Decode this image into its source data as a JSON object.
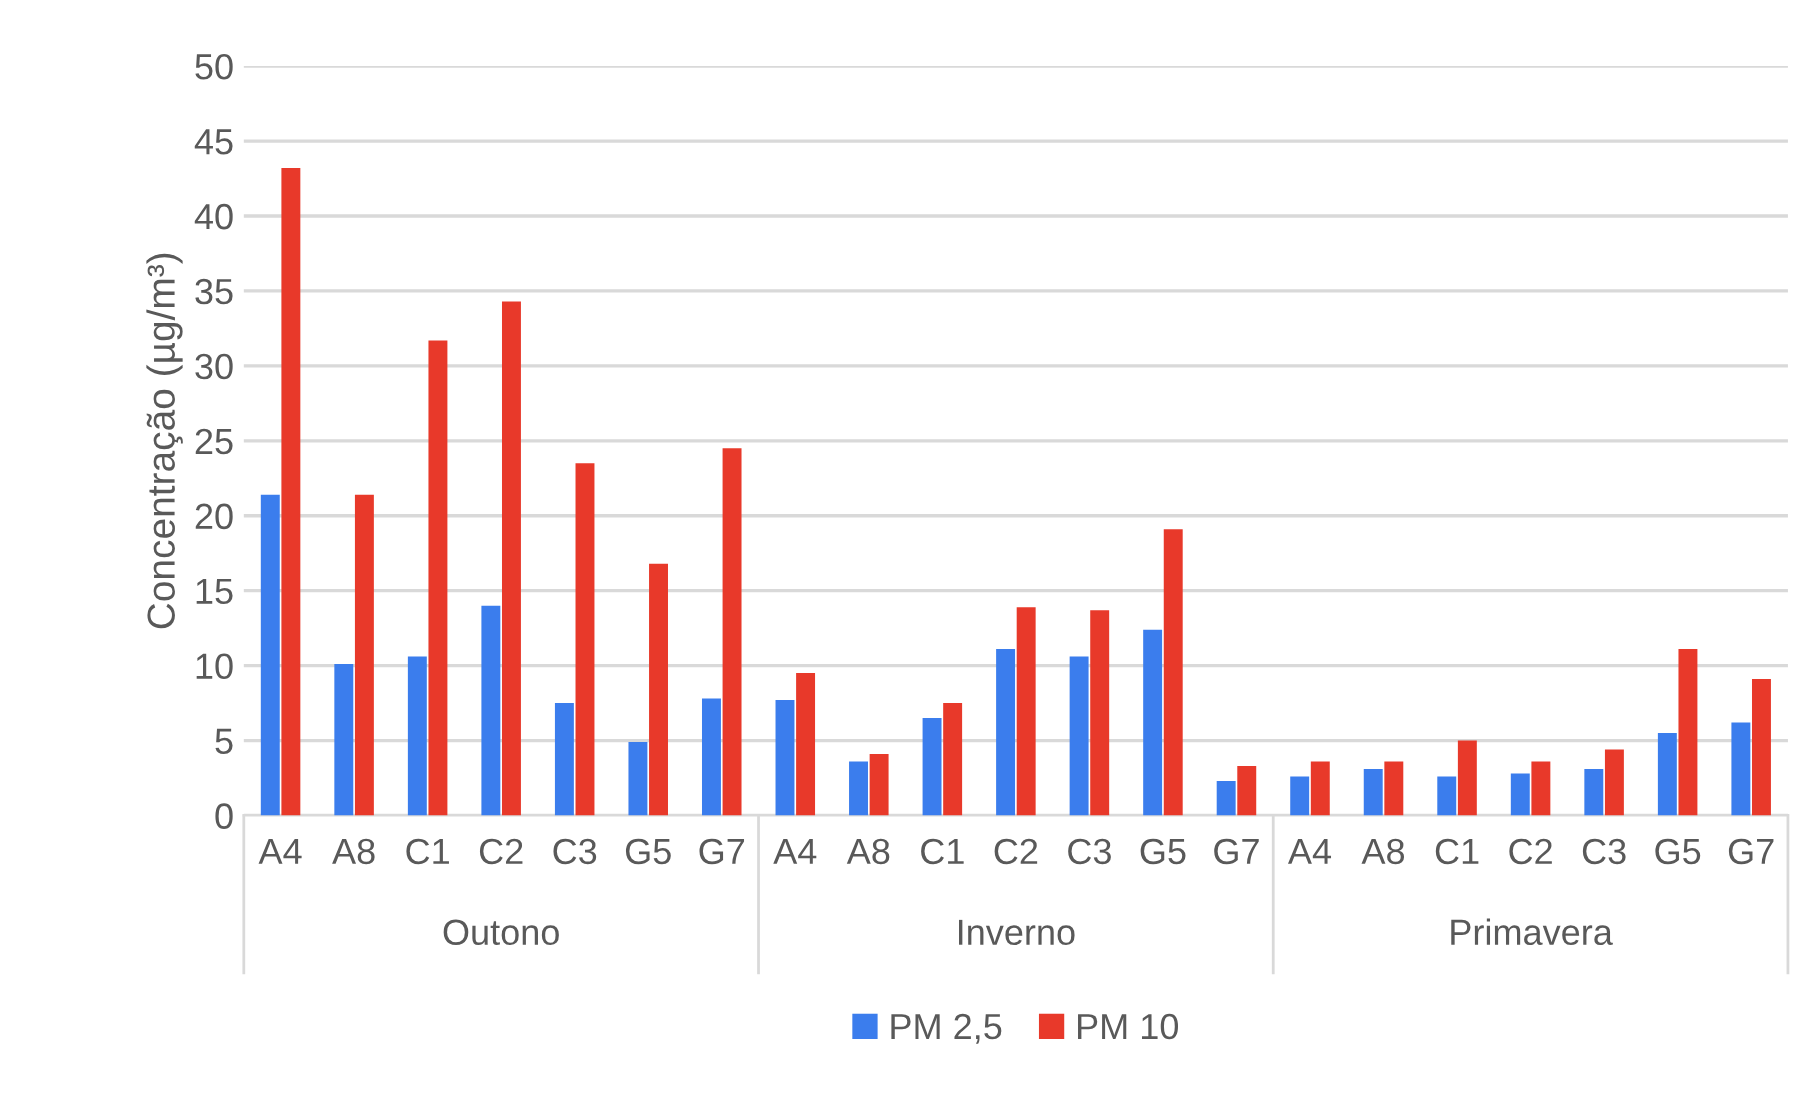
{
  "chart_data": {
    "type": "bar",
    "ylabel": "Concentração (µg/m³)",
    "categories": [
      "A4",
      "A8",
      "C1",
      "C2",
      "C3",
      "G5",
      "G7",
      "A4",
      "A8",
      "C1",
      "C2",
      "C3",
      "G5",
      "G7",
      "A4",
      "A8",
      "C1",
      "C2",
      "C3",
      "G5",
      "G7"
    ],
    "annotations": [
      "Outono",
      "Inverno",
      "Primavera"
    ],
    "series": [
      {
        "name": "PM 2,5",
        "color": "#3b7ded",
        "values": [
          21.4,
          10.1,
          10.6,
          14.0,
          7.5,
          4.9,
          7.8,
          7.7,
          3.6,
          6.5,
          11.1,
          10.6,
          12.4,
          2.3,
          2.6,
          3.1,
          2.6,
          2.8,
          3.1,
          5.5,
          6.2
        ]
      },
      {
        "name": "PM 10",
        "color": "#e8392a",
        "values": [
          43.2,
          21.4,
          31.7,
          34.3,
          23.5,
          16.8,
          24.5,
          9.5,
          4.1,
          7.5,
          13.9,
          13.7,
          19.1,
          3.3,
          3.6,
          3.6,
          5.0,
          3.6,
          4.4,
          11.1,
          9.1
        ]
      }
    ],
    "ylim": [
      0,
      50
    ],
    "yticks": [
      0,
      5,
      10,
      15,
      20,
      25,
      30,
      35,
      40,
      45,
      50
    ],
    "grid": "y",
    "legend": "bottom"
  }
}
